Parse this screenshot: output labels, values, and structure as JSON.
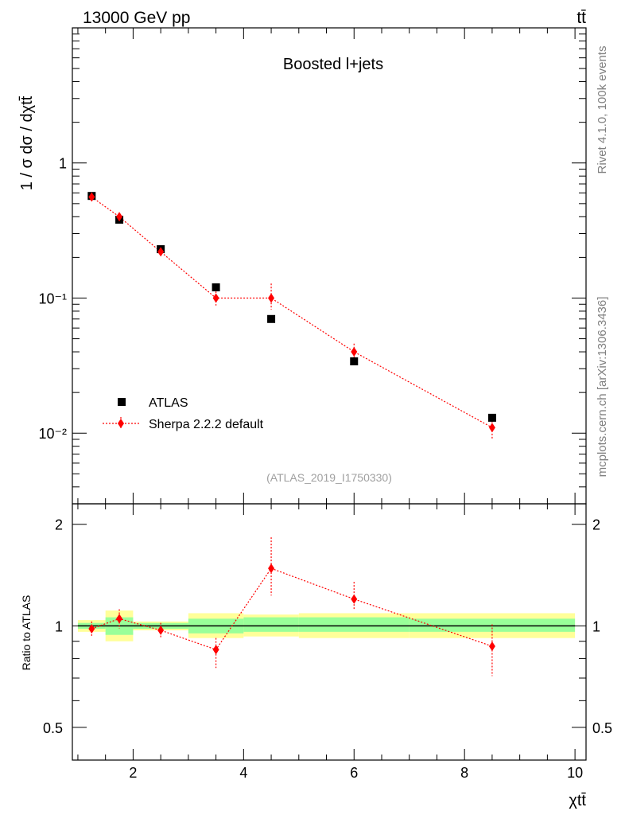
{
  "header": {
    "energy_label": "13000 GeV pp",
    "process_label": "tt̄"
  },
  "side": {
    "rivet_label": "Rivet 4.1.0,  100k events",
    "mcplots_label": "mcplots.cern.ch [arXiv:1306.3436]"
  },
  "chart_data": {
    "type": "scatter",
    "title": "Boosted l+jets",
    "analysis_label": "(ATLAS_2019_I1750330)",
    "xlabel": "χtt̄",
    "ylabel": "1 / σ dσ / dχtt̄",
    "ratio_ylabel": "Ratio to ATLAS",
    "xlim": [
      0.9,
      10.2
    ],
    "ylim": [
      0.003,
      10
    ],
    "yscale": "log",
    "ratio_ylim": [
      0.4,
      2.3
    ],
    "x_tick_labels": [
      "2",
      "4",
      "6",
      "8",
      "10"
    ],
    "x_tick_values": [
      2,
      4,
      6,
      8,
      10
    ],
    "y_tick_labels": [
      "10⁻²",
      "10⁻¹",
      "1"
    ],
    "y_tick_values": [
      0.01,
      0.1,
      1
    ],
    "ratio_tick_labels": [
      "0.5",
      "1",
      "2"
    ],
    "ratio_tick_values": [
      0.5,
      1,
      2
    ],
    "bins": [
      [
        1.0,
        1.5
      ],
      [
        1.5,
        2.0
      ],
      [
        2.0,
        3.0
      ],
      [
        3.0,
        4.0
      ],
      [
        4.0,
        5.0
      ],
      [
        5.0,
        7.0
      ],
      [
        7.0,
        10.0
      ]
    ],
    "legend": {
      "position": "bottom-left",
      "entries": [
        "ATLAS",
        "Sherpa 2.2.2 default"
      ]
    },
    "series": [
      {
        "name": "ATLAS",
        "marker": "square",
        "color": "#000000",
        "x": [
          1.25,
          1.75,
          2.5,
          3.5,
          4.5,
          6.0,
          8.5
        ],
        "values": [
          0.57,
          0.38,
          0.23,
          0.12,
          0.07,
          0.034,
          0.013
        ]
      },
      {
        "name": "Sherpa 2.2.2 default",
        "marker": "diamond",
        "color": "#ff0000",
        "x": [
          1.25,
          1.75,
          2.5,
          3.5,
          4.5,
          6.0,
          8.5
        ],
        "values": [
          0.56,
          0.4,
          0.22,
          0.1,
          0.1,
          0.04,
          0.011
        ],
        "err_low": [
          0.03,
          0.02,
          0.015,
          0.012,
          0.018,
          0.005,
          0.002
        ],
        "err_high": [
          0.03,
          0.02,
          0.015,
          0.012,
          0.028,
          0.006,
          0.002
        ]
      }
    ],
    "ratio": {
      "values": [
        0.98,
        1.05,
        0.97,
        0.85,
        1.48,
        1.2,
        0.87
      ],
      "err_low": [
        0.05,
        0.07,
        0.05,
        0.1,
        0.25,
        0.08,
        0.16
      ],
      "err_high": [
        0.05,
        0.07,
        0.05,
        0.07,
        0.35,
        0.15,
        0.14
      ],
      "band_stat_low": [
        0.98,
        0.94,
        0.98,
        0.95,
        0.96,
        0.96,
        0.96
      ],
      "band_stat_high": [
        1.02,
        1.06,
        1.02,
        1.05,
        1.06,
        1.06,
        1.05
      ],
      "band_total_low": [
        0.96,
        0.9,
        0.97,
        0.92,
        0.93,
        0.92,
        0.92
      ],
      "band_total_high": [
        1.04,
        1.11,
        1.03,
        1.09,
        1.08,
        1.09,
        1.09
      ]
    }
  }
}
